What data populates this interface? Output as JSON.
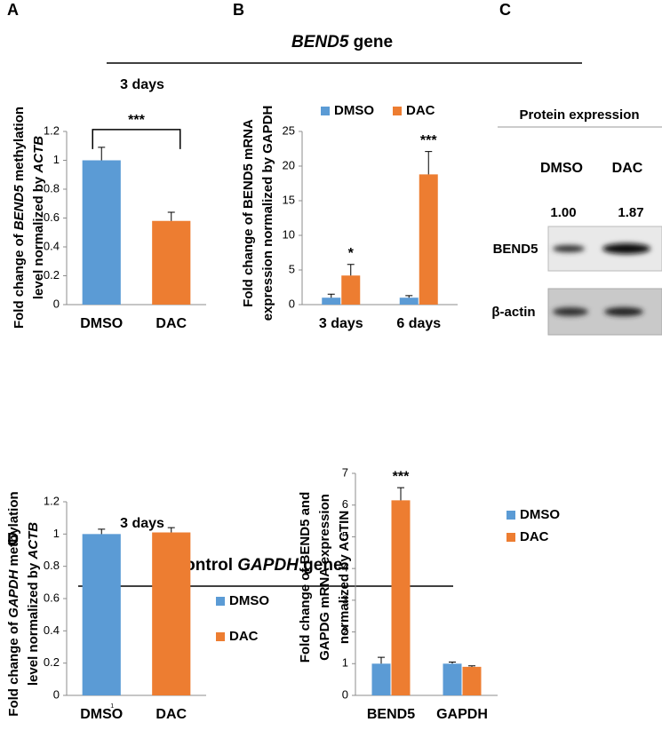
{
  "panel_labels": [
    "A",
    "B",
    "C",
    "D"
  ],
  "headings": [
    [
      {
        "text": "BEND5",
        "italic": true
      },
      {
        "text": " gene"
      }
    ],
    [
      {
        "text": "Control "
      },
      {
        "text": "GAPDH",
        "italic": true
      },
      {
        "text": " gene"
      }
    ]
  ],
  "blot": {
    "title": "Protein expression",
    "lanes": [
      "DMSO",
      "DAC"
    ],
    "quantification": [
      "1.00",
      "1.87"
    ],
    "rows": [
      "BEND5",
      "β-actin"
    ]
  },
  "chart_data": [
    {
      "type": "bar",
      "title": "3 days",
      "categories": [
        "DMSO",
        "DAC"
      ],
      "values": [
        1,
        0.58
      ],
      "errors": [
        0.09,
        0.06
      ],
      "colors": [
        "#5b9bd5",
        "#ed7d31"
      ],
      "significance": "***",
      "ylim": [
        0,
        1.2
      ],
      "yticks": [
        0,
        0.2,
        0.4,
        0.6,
        0.8,
        1,
        1.2
      ],
      "ylabel": [
        [
          {
            "text": "Fold change of "
          },
          {
            "text": "BEND5",
            "italic": true
          },
          {
            "text": " methylation"
          }
        ],
        [
          {
            "text": "level normalized by "
          },
          {
            "text": "ACTB",
            "italic": true
          }
        ]
      ]
    },
    {
      "type": "grouped-bar",
      "categories": [
        "3 days",
        "6 days"
      ],
      "series": [
        {
          "name": "DMSO",
          "color": "#5b9bd5",
          "values": [
            1,
            1
          ],
          "errors": [
            0.5,
            0.3
          ]
        },
        {
          "name": "DAC",
          "color": "#ed7d31",
          "values": [
            4.2,
            18.8
          ],
          "errors": [
            1.6,
            3.3
          ],
          "significance": [
            "*",
            "***"
          ]
        }
      ],
      "legend": "top",
      "ylim": [
        0,
        25
      ],
      "yticks": [
        0,
        5,
        10,
        15,
        20,
        25
      ],
      "ylabel": [
        [
          {
            "text": "Fold change of BEND5 mRNA"
          }
        ],
        [
          {
            "text": "expression normalized by GAPDH"
          }
        ]
      ]
    },
    {
      "type": "bar",
      "title": "3 days",
      "categories": [
        "DMSO",
        "DAC"
      ],
      "values": [
        1,
        1.01
      ],
      "errors": [
        0.03,
        0.03
      ],
      "colors": [
        "#5b9bd5",
        "#ed7d31"
      ],
      "legend": "right",
      "footnote": "1",
      "ylim": [
        0,
        1.2
      ],
      "yticks": [
        0,
        0.2,
        0.4,
        0.6,
        0.8,
        1,
        1.2
      ],
      "ylabel": [
        [
          {
            "text": "Fold change of "
          },
          {
            "text": "GAPDH",
            "italic": true
          },
          {
            "text": " methylation"
          }
        ],
        [
          {
            "text": "level normalized by "
          },
          {
            "text": "ACTB",
            "italic": true
          }
        ]
      ]
    },
    {
      "type": "grouped-bar",
      "categories": [
        "BEND5",
        "GAPDH"
      ],
      "series": [
        {
          "name": "DMSO",
          "color": "#5b9bd5",
          "values": [
            1,
            1
          ],
          "errors": [
            0.2,
            0.05
          ]
        },
        {
          "name": "DAC",
          "color": "#ed7d31",
          "values": [
            6.15,
            0.9
          ],
          "errors": [
            0.4,
            0.03
          ],
          "significance": [
            "***",
            null
          ]
        }
      ],
      "legend": "right",
      "ylim": [
        0,
        7
      ],
      "yticks": [
        0,
        1,
        2,
        3,
        4,
        5,
        6,
        7
      ],
      "ylabel": [
        [
          {
            "text": "Fold change of BEND5 and"
          }
        ],
        [
          {
            "text": "GAPDG mRNA expression"
          }
        ],
        [
          {
            "text": "normalized by ACTIN"
          }
        ]
      ]
    }
  ]
}
